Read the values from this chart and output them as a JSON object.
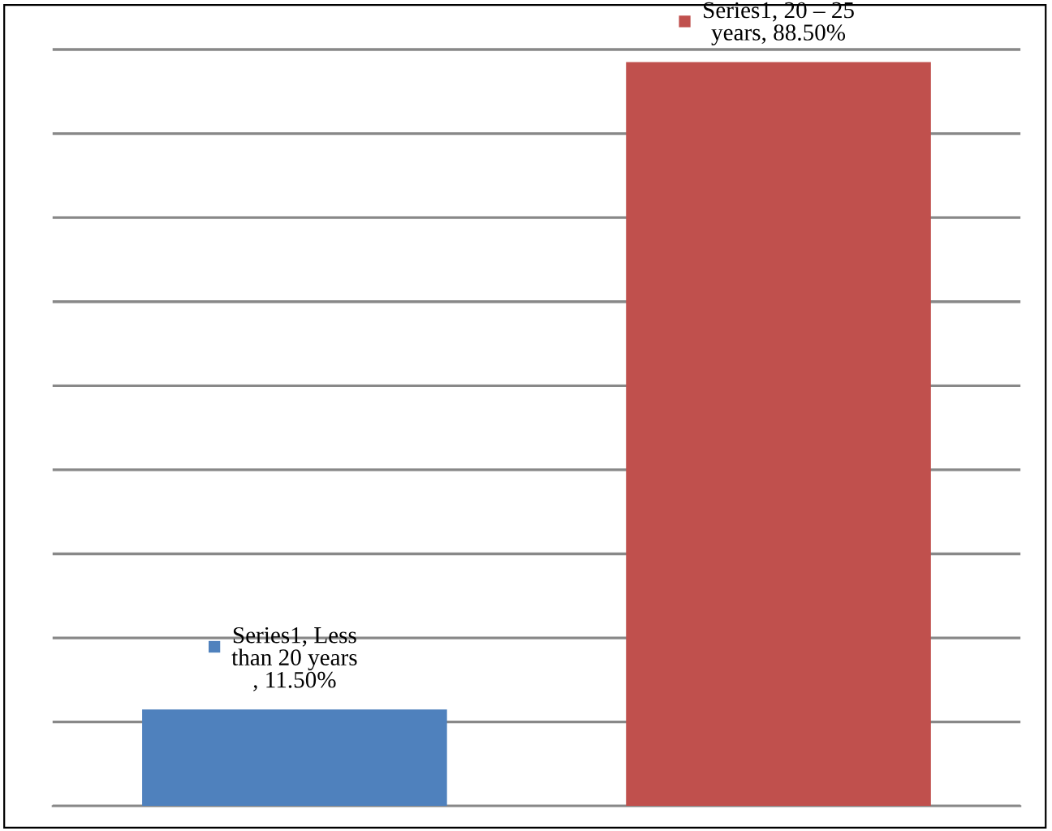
{
  "chart_data": {
    "type": "bar",
    "categories": [
      null,
      null
    ],
    "values": [
      11.5,
      88.5
    ],
    "colors": [
      "#4f81bd",
      "#c0504d"
    ],
    "value_labels": [
      "Series1, Less\nthan 20 years\n, 11.50%",
      "Series1, 20 – 25\nyears, 88.50%"
    ],
    "yticks": [
      {
        "value": 0,
        "label": null
      },
      {
        "value": 10,
        "label": null
      },
      {
        "value": 20,
        "label": null
      },
      {
        "value": 30,
        "label": null
      },
      {
        "value": 40,
        "label": null
      },
      {
        "value": 50,
        "label": null
      },
      {
        "value": 60,
        "label": null
      },
      {
        "value": 70,
        "label": null
      },
      {
        "value": 80,
        "label": null
      },
      {
        "value": 90,
        "label": null
      }
    ],
    "grid": "y"
  }
}
